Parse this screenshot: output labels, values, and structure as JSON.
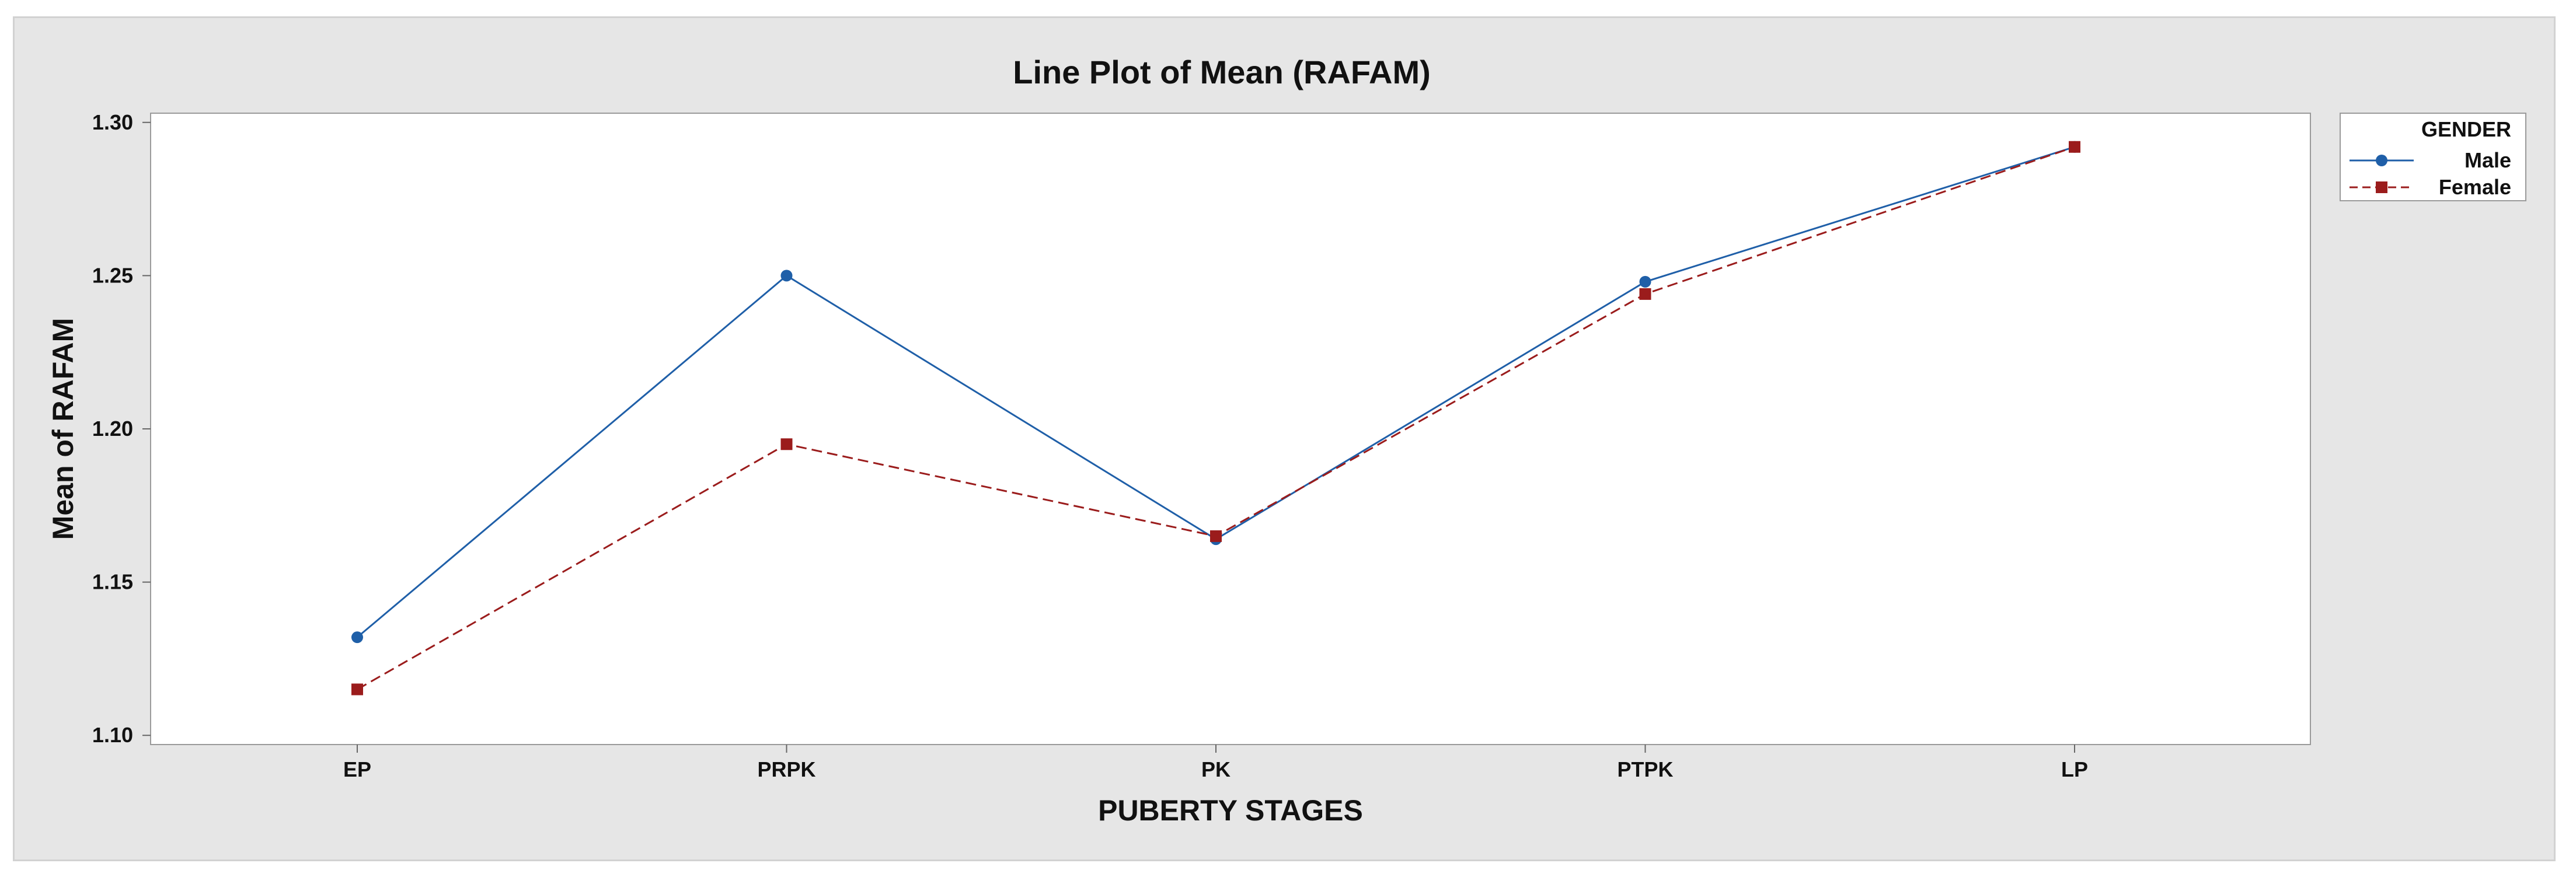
{
  "chart_data": {
    "type": "line",
    "title": "Line Plot of Mean (RAFAM)",
    "xlabel": "PUBERTY STAGES",
    "ylabel": "Mean of RAFAM",
    "categories": [
      "EP",
      "PRPK",
      "PK",
      "PTPK",
      "LP"
    ],
    "ylim": [
      1.097,
      1.303
    ],
    "yticks": [
      "1.10",
      "1.15",
      "1.20",
      "1.25",
      "1.30"
    ],
    "ytick_values": [
      1.1,
      1.15,
      1.2,
      1.25,
      1.3
    ],
    "grid": false,
    "legend": {
      "title": "GENDER",
      "position": "top-right-outside"
    },
    "series": [
      {
        "name": "Male",
        "values": [
          1.132,
          1.25,
          1.164,
          1.248,
          1.292
        ],
        "color": "#1f5fa8",
        "marker": "circle",
        "line_style": "solid"
      },
      {
        "name": "Female",
        "values": [
          1.115,
          1.195,
          1.165,
          1.244,
          1.292
        ],
        "color": "#9b1c1c",
        "marker": "square",
        "line_style": "dashed"
      }
    ]
  }
}
